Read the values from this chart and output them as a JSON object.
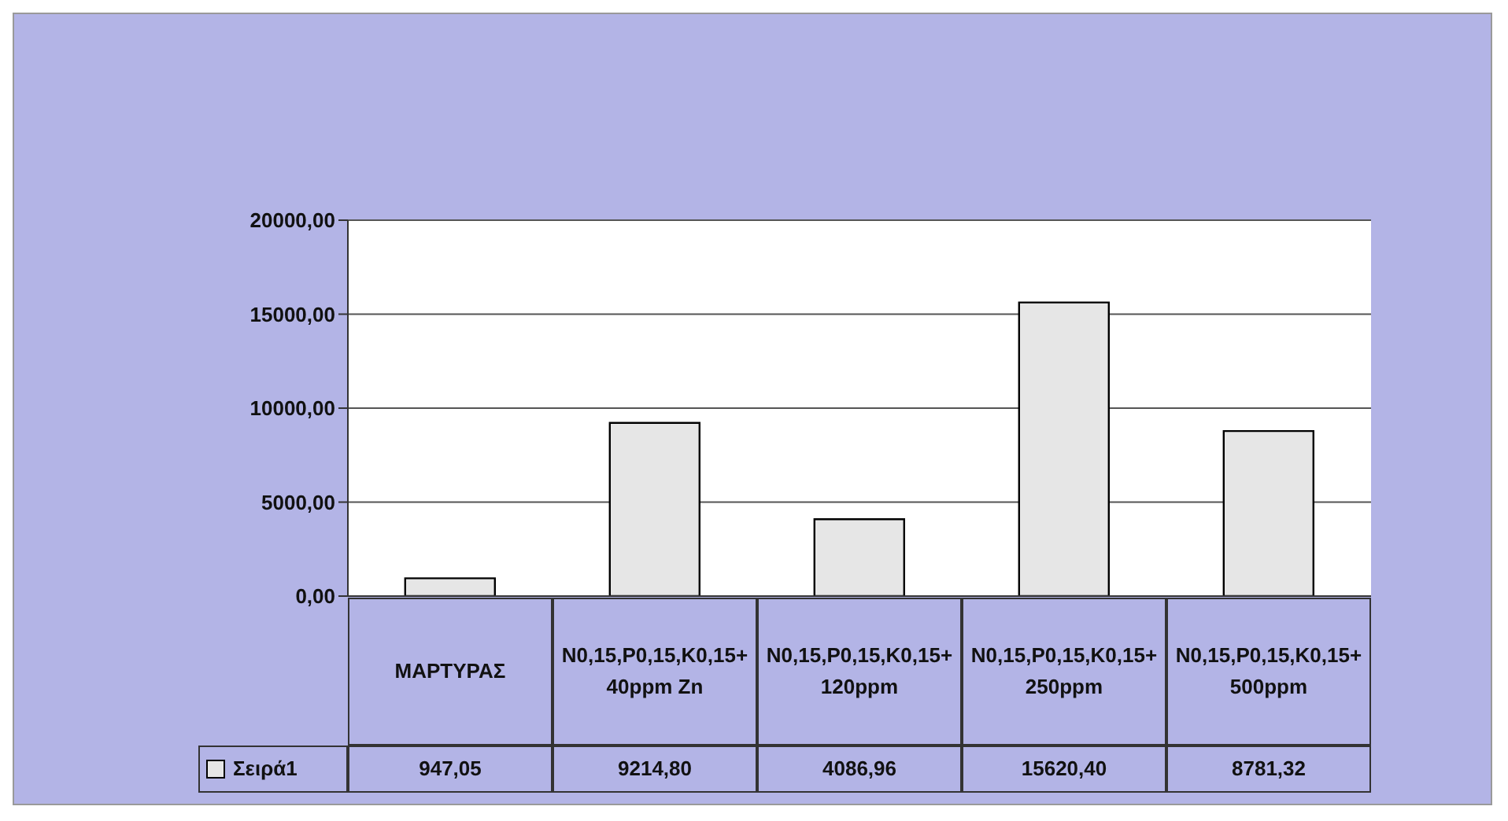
{
  "chart_data": {
    "type": "bar",
    "categories": [
      "ΜΑΡΤΥΡΑΣ",
      "N0,15,P0,15,K0,15+40ppm Zn",
      "N0,15,P0,15,K0,15+120ppm",
      "N0,15,P0,15,K0,15+250ppm",
      "N0,15,P0,15,K0,15+500ppm"
    ],
    "series": [
      {
        "name": "Σειρά1",
        "color": "#e6e6e6",
        "values": [
          947.05,
          9214.8,
          4086.96,
          15620.4,
          8781.32
        ],
        "value_labels": [
          "947,05",
          "9214,80",
          "4086,96",
          "15620,40",
          "8781,32"
        ]
      }
    ],
    "ylim": [
      0,
      20000
    ],
    "yticks": [
      {
        "value": 0,
        "label": "0,00"
      },
      {
        "value": 5000,
        "label": "5000,00"
      },
      {
        "value": 10000,
        "label": "10000,00"
      },
      {
        "value": 15000,
        "label": "15000,00"
      },
      {
        "value": 20000,
        "label": "20000,00"
      }
    ],
    "grid": "y",
    "legend": "bottom"
  }
}
